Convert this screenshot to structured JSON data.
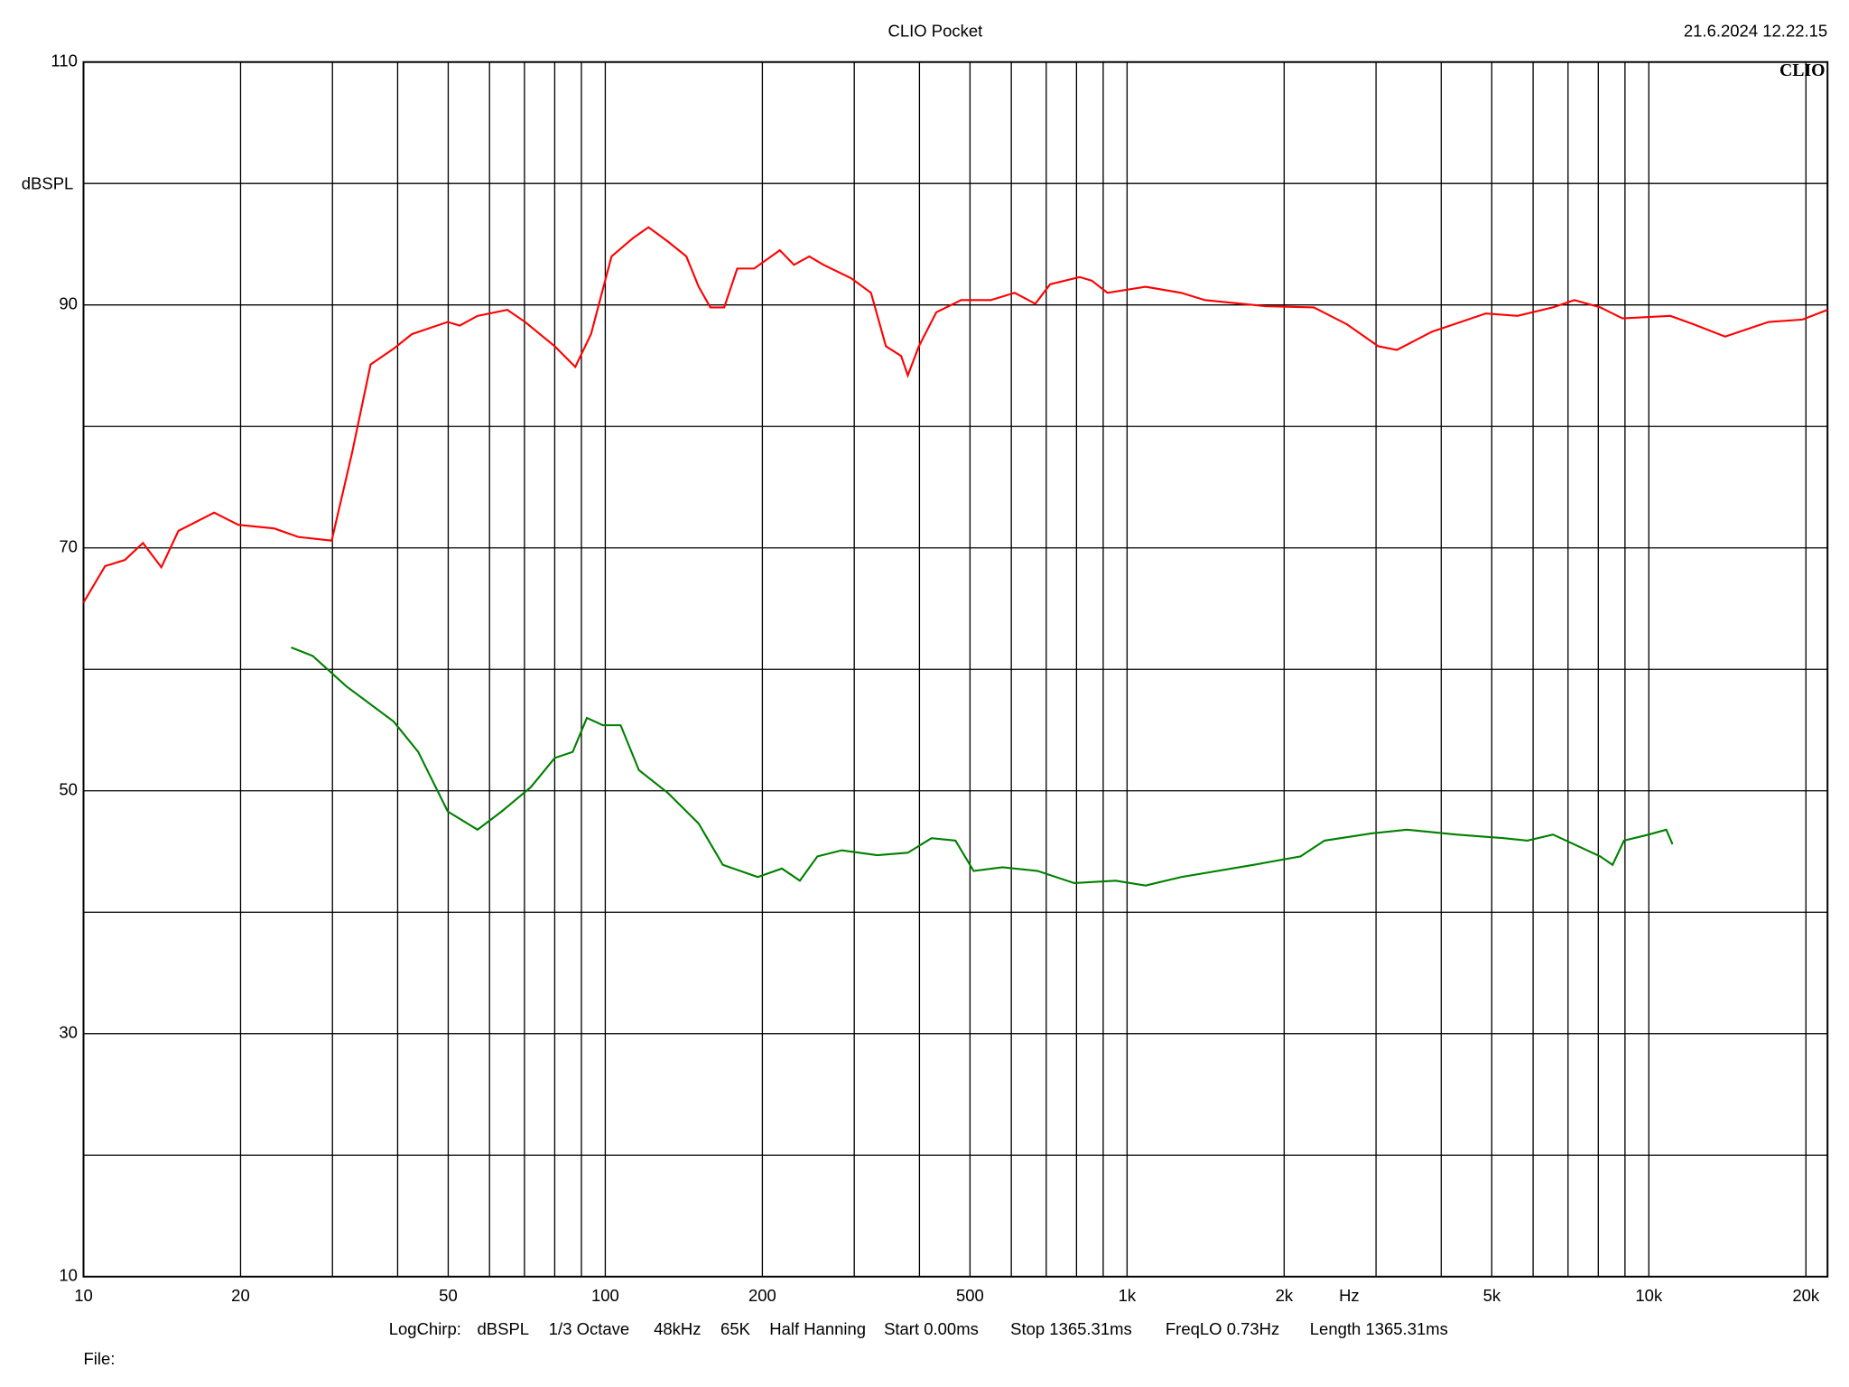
{
  "chart_data": {
    "type": "line",
    "title": "CLIO Pocket",
    "timestamp": "21.6.2024 12.22.15",
    "logo": "CLIO",
    "y_label": "dBSPL",
    "x_label": "Hz",
    "settings": [
      "LogChirp:",
      "dBSPL",
      "1/3 Octave",
      "48kHz",
      "65K",
      "Half Hanning",
      "Start 0.00ms",
      "Stop 1365.31ms",
      "FreqLO 0.73Hz",
      "Length 1365.31ms"
    ],
    "file_label": "File:",
    "xscale": "log",
    "xlim": [
      10,
      22000
    ],
    "ylim": [
      10,
      110
    ],
    "xticks": [
      10,
      20,
      50,
      100,
      200,
      500,
      {
        "value": 1000,
        "label": "1k"
      },
      {
        "value": 2000,
        "label": "2k"
      },
      {
        "value": 5000,
        "label": "5k"
      },
      {
        "value": 10000,
        "label": "10k"
      },
      {
        "value": 20000,
        "label": "20k"
      }
    ],
    "xgrid_minor": [
      30,
      40,
      60,
      70,
      80,
      90,
      300,
      400,
      600,
      700,
      800,
      900,
      3000,
      4000,
      6000,
      7000,
      8000,
      9000
    ],
    "yticks": [
      10,
      30,
      50,
      70,
      90,
      110
    ],
    "ygrid_minor": [
      20,
      40,
      60,
      80,
      100
    ],
    "grid": true,
    "series": [
      {
        "color": "#ff0000",
        "x": [
          10,
          11,
          12,
          13,
          14.1,
          15.2,
          17.8,
          19.8,
          23.2,
          25.8,
          29.9,
          32.7,
          35.5,
          39.3,
          42.6,
          49.9,
          52.6,
          56.9,
          64.9,
          70.2,
          80,
          87.6,
          93.9,
          102.8,
          113,
          121,
          132,
          143,
          151,
          159,
          169,
          179,
          193,
          216,
          230,
          246,
          262,
          296,
          323,
          345,
          369,
          380,
          399,
          431,
          481,
          548,
          609,
          667,
          712,
          811,
          856,
          917,
          1085,
          1270,
          1410,
          1840,
          2280,
          2640,
          3030,
          3290,
          3840,
          4870,
          5600,
          6550,
          7200,
          8070,
          8900,
          11000,
          12200,
          14000,
          16960,
          19700,
          22000
        ],
        "values": [
          65.5,
          68.5,
          69,
          70.4,
          68.4,
          71.4,
          72.9,
          71.9,
          71.6,
          70.9,
          70.6,
          77.8,
          85.1,
          86.4,
          87.6,
          88.6,
          88.3,
          89.1,
          89.6,
          88.6,
          86.6,
          84.9,
          87.6,
          94.0,
          95.5,
          96.4,
          95.2,
          94.0,
          91.5,
          89.8,
          89.8,
          93.0,
          93.0,
          94.5,
          93.3,
          94.0,
          93.3,
          92.2,
          91.0,
          86.6,
          85.8,
          84.2,
          86.6,
          89.4,
          90.4,
          90.4,
          91.0,
          90.1,
          91.7,
          92.3,
          92.0,
          91.0,
          91.5,
          91.0,
          90.4,
          89.9,
          89.8,
          88.4,
          86.6,
          86.3,
          87.8,
          89.3,
          89.1,
          89.8,
          90.4,
          89.8,
          88.9,
          89.1,
          88.4,
          87.4,
          88.6,
          88.8,
          89.6
        ]
      },
      {
        "color": "#008000",
        "x": [
          25,
          27.5,
          31.9,
          39.3,
          43.8,
          49.9,
          56.9,
          63.3,
          72,
          80,
          86.6,
          92.2,
          98.9,
          107,
          116,
          132,
          151,
          168,
          196,
          218,
          236,
          255,
          284,
          332,
          380,
          422,
          469,
          508,
          577,
          674,
          792,
          951,
          1085,
          1270,
          1745,
          2150,
          2390,
          2950,
          3440,
          4270,
          5270,
          5850,
          6550,
          8070,
          8520,
          8960,
          10000,
          10800,
          11100
        ],
        "values": [
          61.8,
          61.1,
          58.6,
          55.7,
          53.2,
          48.3,
          46.8,
          48.3,
          50.3,
          52.7,
          53.2,
          56.0,
          55.4,
          55.4,
          51.7,
          49.8,
          47.3,
          43.9,
          42.9,
          43.6,
          42.6,
          44.6,
          45.1,
          44.7,
          44.9,
          46.1,
          45.9,
          43.4,
          43.7,
          43.4,
          42.4,
          42.6,
          42.2,
          42.9,
          43.9,
          44.6,
          45.9,
          46.5,
          46.8,
          46.4,
          46.1,
          45.9,
          46.4,
          44.6,
          43.9,
          45.9,
          46.4,
          46.8,
          45.6
        ]
      }
    ]
  }
}
